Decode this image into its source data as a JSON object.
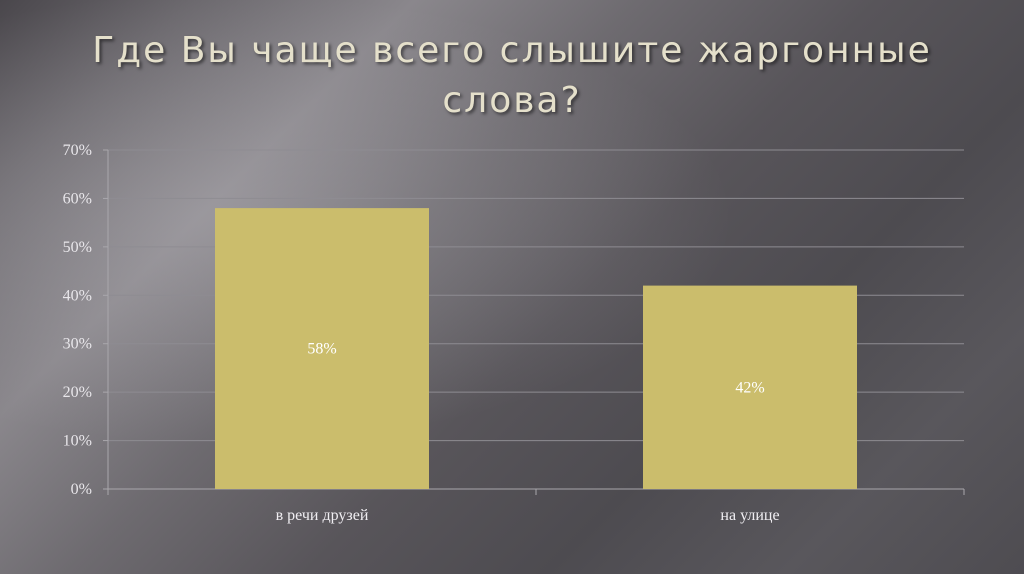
{
  "slide": {
    "title": "Где Вы чаще всего слышите жаргонные слова?"
  },
  "colors": {
    "bar": "#cbbd6c",
    "grid": "#8e8c92",
    "axis": "#a9a7ac",
    "title_text": "#e5e0cb"
  },
  "chart_data": {
    "type": "bar",
    "title": "Где Вы чаще всего слышите жаргонные слова?",
    "categories": [
      "в речи друзей",
      "на улице"
    ],
    "values": [
      58,
      42
    ],
    "data_labels": [
      "58%",
      "42%"
    ],
    "ylim": [
      0,
      70
    ],
    "yticks": [
      0,
      10,
      20,
      30,
      40,
      50,
      60,
      70
    ],
    "ytick_labels": [
      "0%",
      "10%",
      "20%",
      "30%",
      "40%",
      "50%",
      "60%",
      "70%"
    ],
    "xlabel": "",
    "ylabel": "",
    "grid": true,
    "legend": "none"
  }
}
